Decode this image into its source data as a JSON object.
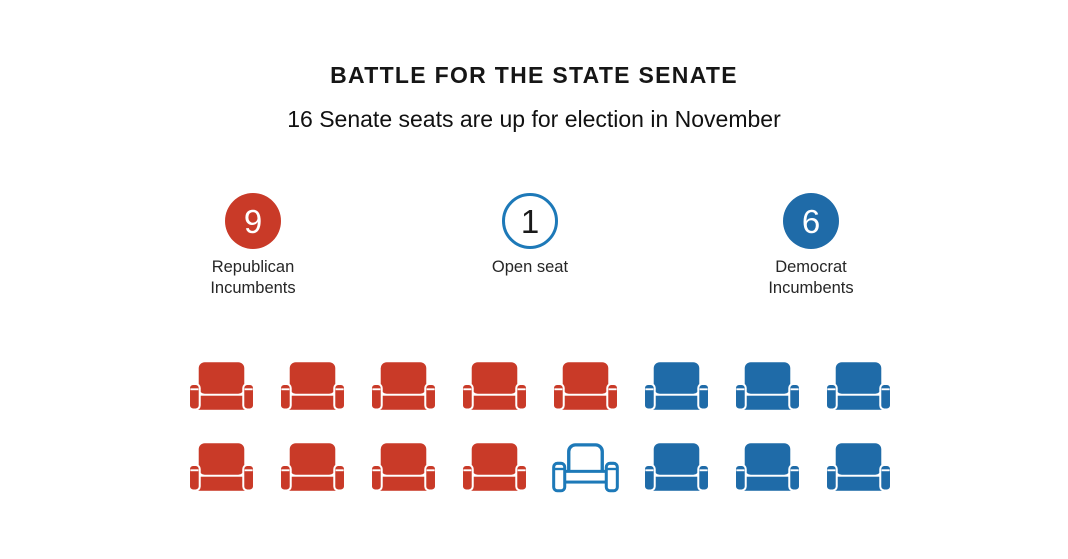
{
  "header": {
    "title": "BATTLE FOR THE STATE SENATE",
    "subtitle": "16 Senate seats are up for election in November"
  },
  "legend": [
    {
      "id": "republican",
      "count": "9",
      "label_line1": "Republican",
      "label_line2": "Incumbents",
      "style": "filled-red"
    },
    {
      "id": "open",
      "count": "1",
      "label_line1": "Open seat",
      "label_line2": "",
      "style": "outlined-blue"
    },
    {
      "id": "democrat",
      "count": "6",
      "label_line1": "Democrat",
      "label_line2": "Incumbents",
      "style": "filled-blue"
    }
  ],
  "colors": {
    "republican_red": "#c93a28",
    "democrat_blue": "#1f6ba8",
    "open_outline_blue": "#1d79b8",
    "text_dark": "#161616",
    "background": "#ffffff"
  },
  "chart_data": {
    "type": "pictogram",
    "title": "BATTLE FOR THE STATE SENATE",
    "subtitle": "16 Senate seats are up for election in November",
    "total_seats": 16,
    "categories": [
      "Republican Incumbents",
      "Open seat",
      "Democrat Incumbents"
    ],
    "values": [
      9,
      1,
      6
    ],
    "icon": "armchair",
    "legend_position": "top",
    "seat_rows": [
      [
        "R",
        "R",
        "R",
        "R",
        "R",
        "D",
        "D",
        "D"
      ],
      [
        "R",
        "R",
        "R",
        "R",
        "O",
        "D",
        "D",
        "D"
      ]
    ]
  }
}
